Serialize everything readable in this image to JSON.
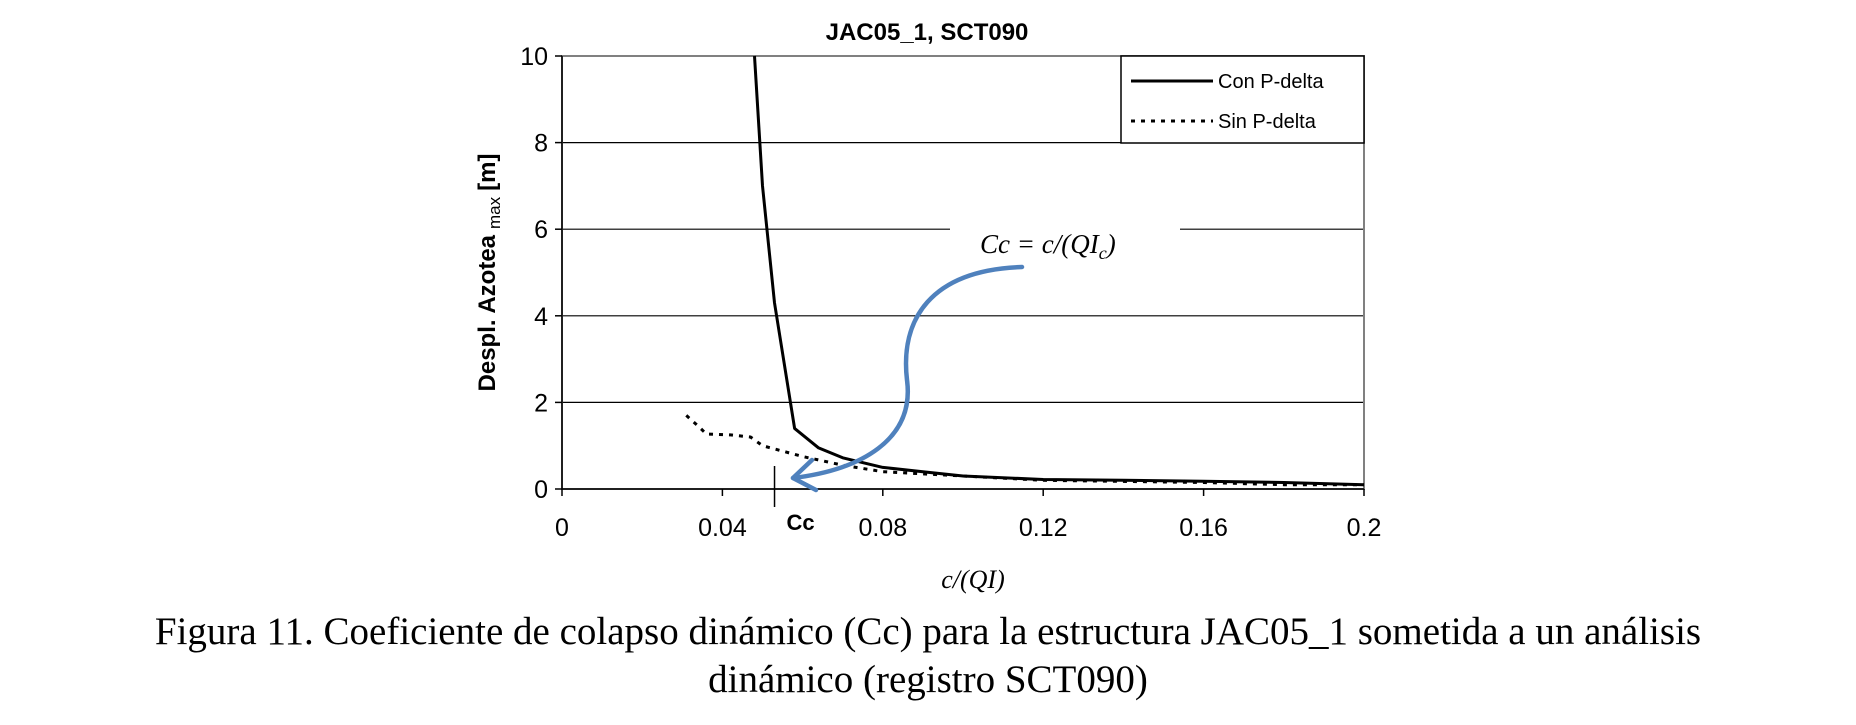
{
  "chart_data": {
    "type": "line",
    "title": "JAC05_1, SCT090",
    "xlabel": "c/(QI)",
    "ylabel": "Despl. Azotea",
    "ylabel_sub": "max",
    "ylabel_unit": "[m]",
    "xlim": [
      0,
      0.2
    ],
    "ylim": [
      0,
      10
    ],
    "xticks": [
      0,
      0.04,
      0.08,
      0.12,
      0.16,
      0.2
    ],
    "xtick_labels": [
      "0",
      "0.04",
      "0.08",
      "0.12",
      "0.16",
      "0.2"
    ],
    "yticks": [
      0,
      2,
      4,
      6,
      8,
      10
    ],
    "ytick_labels": [
      "0",
      "2",
      "4",
      "6",
      "8",
      "10"
    ],
    "grid": "horizontal",
    "legend_position": "top-right",
    "series": [
      {
        "name": "Con P-delta",
        "style": "solid",
        "x": [
          0.048,
          0.05,
          0.053,
          0.058,
          0.064,
          0.07,
          0.08,
          0.09,
          0.1,
          0.12,
          0.14,
          0.16,
          0.18,
          0.2
        ],
        "y": [
          10.0,
          7.0,
          4.3,
          1.4,
          0.95,
          0.72,
          0.5,
          0.4,
          0.3,
          0.22,
          0.2,
          0.18,
          0.15,
          0.1
        ]
      },
      {
        "name": "Sin P-delta",
        "style": "dotted",
        "x": [
          0.031,
          0.034,
          0.036,
          0.042,
          0.047,
          0.05,
          0.06,
          0.07,
          0.08,
          0.1,
          0.12,
          0.16,
          0.18,
          0.2
        ],
        "y": [
          1.7,
          1.45,
          1.27,
          1.25,
          1.2,
          1.0,
          0.75,
          0.55,
          0.4,
          0.3,
          0.2,
          0.15,
          0.1,
          0.1
        ]
      }
    ],
    "annotations": {
      "cc_label": "Cc",
      "cc_x": 0.053,
      "formula_main": "Cc = c/(QI",
      "formula_sub": "c",
      "formula_close": ")"
    }
  },
  "caption": {
    "line1": "Figura 11. Coeficiente de colapso dinámico (Cc) para la estructura JAC05_1 sometida a un análisis",
    "line2": "dinámico (registro SCT090)"
  },
  "colors": {
    "arrow": "#4f81bd",
    "line": "#000000",
    "grid": "#000000"
  }
}
